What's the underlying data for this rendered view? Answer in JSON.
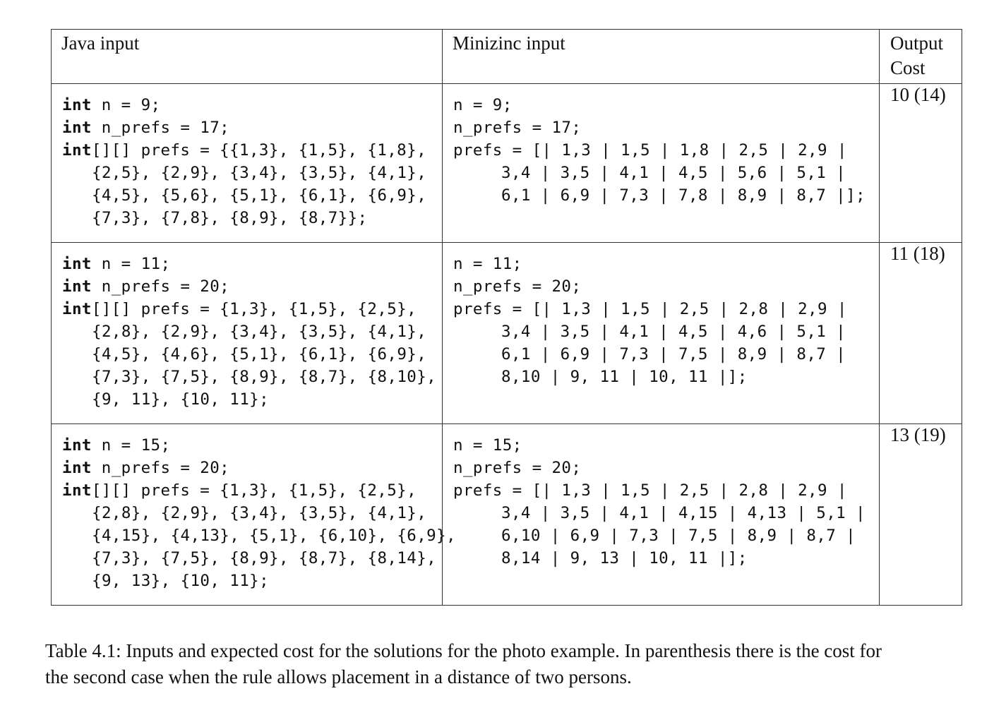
{
  "table": {
    "headers": {
      "java": "Java input",
      "minizinc": "Minizinc input",
      "cost_line1": "Output",
      "cost_line2": "Cost"
    },
    "rows": [
      {
        "java": {
          "l1_kw": "int",
          "l1_rest": " n = 9;",
          "l2_kw": "int",
          "l2_rest": " n_prefs = 17;",
          "l3_kw": "int",
          "l3_rest": "[][] prefs = {{1,3}, {1,5}, {1,8},",
          "cont": [
            "{2,5}, {2,9}, {3,4}, {3,5}, {4,1},",
            "{4,5}, {5,6}, {5,1}, {6,1}, {6,9},",
            "{7,3}, {7,8}, {8,9}, {8,7}};"
          ]
        },
        "minizinc": {
          "l1": "n = 9;",
          "l2": "n_prefs = 17;",
          "l3": "prefs = [| 1,3 | 1,5 | 1,8 | 2,5 | 2,9 |",
          "cont": [
            "3,4 | 3,5 | 4,1 | 4,5 | 5,6 | 5,1 |",
            "6,1 | 6,9 | 7,3 | 7,8 | 8,9 | 8,7 |];"
          ]
        },
        "cost": "10 (14)"
      },
      {
        "java": {
          "l1_kw": "int",
          "l1_rest": " n = 11;",
          "l2_kw": "int",
          "l2_rest": " n_prefs = 20;",
          "l3_kw": "int",
          "l3_rest": "[][] prefs = {1,3}, {1,5}, {2,5},",
          "cont": [
            "{2,8}, {2,9}, {3,4}, {3,5}, {4,1},",
            "{4,5}, {4,6}, {5,1}, {6,1}, {6,9},",
            "{7,3}, {7,5}, {8,9}, {8,7}, {8,10},",
            "{9, 11}, {10, 11};"
          ]
        },
        "minizinc": {
          "l1": "n = 11;",
          "l2": "n_prefs = 20;",
          "l3": "prefs = [| 1,3 | 1,5 | 2,5 | 2,8 | 2,9 |",
          "cont": [
            "3,4 | 3,5 | 4,1 | 4,5 | 4,6 | 5,1 |",
            "6,1 | 6,9 | 7,3 | 7,5 | 8,9 | 8,7 |",
            "8,10 | 9, 11 | 10, 11 |];"
          ]
        },
        "cost": "11 (18)"
      },
      {
        "java": {
          "l1_kw": "int",
          "l1_rest": " n = 15;",
          "l2_kw": "int",
          "l2_rest": " n_prefs = 20;",
          "l3_kw": "int",
          "l3_rest": "[][] prefs = {1,3}, {1,5}, {2,5},",
          "cont": [
            "{2,8}, {2,9}, {3,4}, {3,5}, {4,1},",
            "{4,15}, {4,13}, {5,1}, {6,10}, {6,9},",
            "{7,3}, {7,5}, {8,9}, {8,7}, {8,14},",
            "{9, 13}, {10, 11};"
          ]
        },
        "minizinc": {
          "l1": "n = 15;",
          "l2": "n_prefs = 20;",
          "l3": "prefs = [| 1,3 | 1,5 | 2,5 | 2,8 | 2,9 |",
          "cont": [
            "3,4 | 3,5 | 4,1 | 4,15 | 4,13 | 5,1 |",
            "6,10 | 6,9 | 7,3 | 7,5 | 8,9 | 8,7 |",
            "8,14 | 9, 13 | 10, 11 |];"
          ]
        },
        "cost": "13 (19)"
      }
    ]
  },
  "caption": {
    "line1": "Table 4.1: Inputs and expected cost for the solutions for the photo example. In parenthesis there is the cost for",
    "line2": "the second case when the rule allows placement in a distance of two persons."
  }
}
